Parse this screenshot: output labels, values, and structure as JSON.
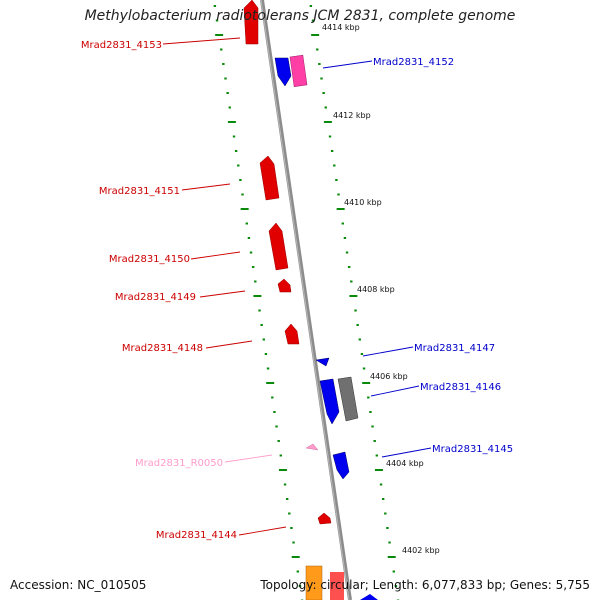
{
  "title": "Methylobacterium radiotolerans JCM 2831, complete genome",
  "accession_label": "Accession: NC_010505",
  "topology_label": "Topology: circular; Length: 6,077,833 bp; Genes: 5,755",
  "colors": {
    "forward_gene": "#ff0000",
    "reverse_gene": "#0000ff",
    "rna": "#ff9ccc",
    "pseudo": "#ff33aa",
    "other": "#808080",
    "tick": "#008000",
    "backbone": "#909090"
  },
  "kbp_labels": [
    "4414 kbp",
    "4412 kbp",
    "4410 kbp",
    "4408 kbp",
    "4406 kbp",
    "4404 kbp",
    "4402 kbp"
  ],
  "genes": [
    {
      "name": "Mrad2831_4153",
      "color": "#cc0000"
    },
    {
      "name": "Mrad2831_4152",
      "color": "#0000cc"
    },
    {
      "name": "Mrad2831_4151",
      "color": "#cc0000"
    },
    {
      "name": "Mrad2831_4150",
      "color": "#cc0000"
    },
    {
      "name": "Mrad2831_4149",
      "color": "#cc0000"
    },
    {
      "name": "Mrad2831_4148",
      "color": "#cc0000"
    },
    {
      "name": "Mrad2831_4147",
      "color": "#0000cc"
    },
    {
      "name": "Mrad2831_4146",
      "color": "#0000cc"
    },
    {
      "name": "Mrad2831_4145",
      "color": "#0000cc"
    },
    {
      "name": "Mrad2831_R0050",
      "color": "#ff9ccc"
    },
    {
      "name": "Mrad2831_4144",
      "color": "#cc0000"
    }
  ]
}
